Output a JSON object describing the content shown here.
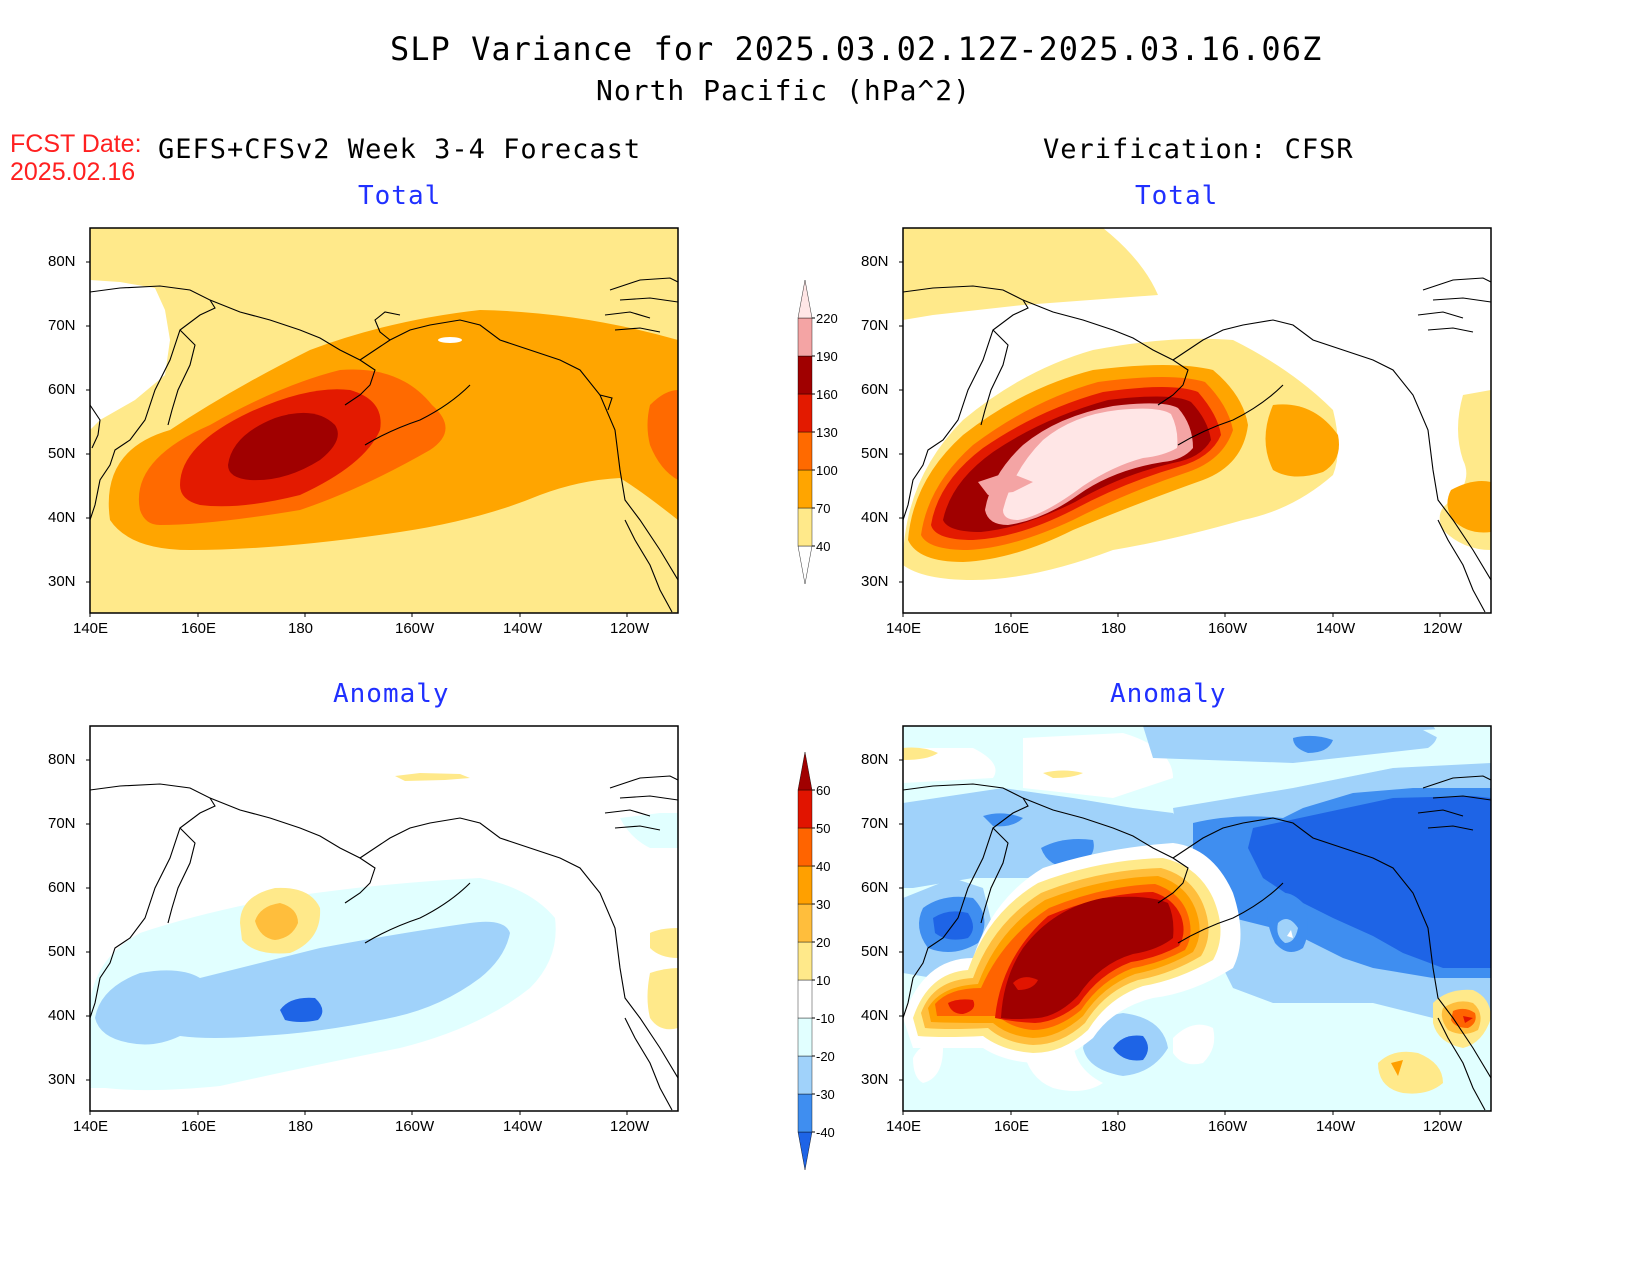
{
  "header": {
    "title": "SLP Variance for 2025.03.02.12Z-2025.03.16.06Z",
    "subtitle": "North Pacific (hPa^2)",
    "fcst_label": "FCST Date:",
    "fcst_date": "2025.02.16",
    "left_heading": "GEFS+CFSv2 Week 3-4 Forecast",
    "right_heading": "Verification: CFSR"
  },
  "panels": [
    {
      "title": "Total"
    },
    {
      "title": "Total"
    },
    {
      "title": "Anomaly"
    },
    {
      "title": "Anomaly"
    }
  ],
  "axes": {
    "lat_labels": [
      "80N",
      "70N",
      "60N",
      "50N",
      "40N",
      "30N"
    ],
    "lon_labels": [
      "140E",
      "160E",
      "180",
      "160W",
      "140W",
      "120W"
    ]
  },
  "colorbar_total": {
    "levels": [
      "40",
      "70",
      "100",
      "130",
      "160",
      "190",
      "220"
    ],
    "colors": [
      "#ffffff",
      "#ffe98a",
      "#ffa500",
      "#ff6a00",
      "#e31a00",
      "#a00000",
      "#f4a4a4",
      "#ffe6e6"
    ]
  },
  "colorbar_anom": {
    "levels": [
      "-40",
      "-30",
      "-20",
      "-10",
      "10",
      "20",
      "30",
      "40",
      "50",
      "60"
    ],
    "colors": [
      "#1e64e6",
      "#3f8ef0",
      "#a0d2fa",
      "#e1ffff",
      "#ffffff",
      "#ffe98a",
      "#ffbe3c",
      "#ffa000",
      "#ff6400",
      "#e11400",
      "#a00000"
    ]
  }
}
